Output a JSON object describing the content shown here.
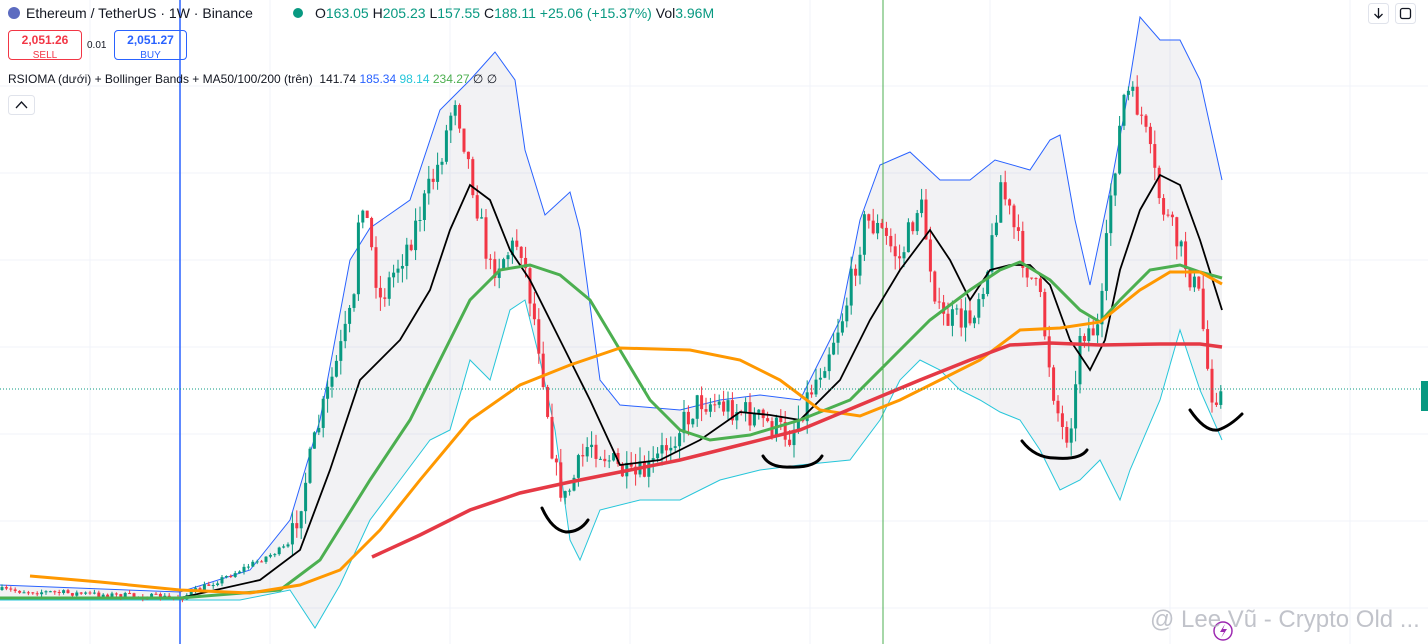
{
  "header": {
    "symbol": "Ethereum / TetherUS · 1W · Binance",
    "open_label": "O",
    "open": "163.05",
    "high_label": "H",
    "high": "205.23",
    "low_label": "L",
    "low": "157.55",
    "close_label": "C",
    "close": "188.11",
    "change": "+25.06 (+15.37%)",
    "volume_label": "Vol",
    "volume": "3.96M"
  },
  "trade": {
    "sell_price": "2,051.26",
    "sell_label": "SELL",
    "spread": "0.01",
    "buy_price": "2,051.27",
    "buy_label": "BUY"
  },
  "indicator": {
    "name": "RSIOMA (dưới) + Bollinger Bands + MA50/100/200 (trên)",
    "values": [
      "141.74",
      "185.34",
      "98.14",
      "234.27",
      "∅",
      "∅"
    ]
  },
  "watermark": "@ Lee Vũ - Crypto Old ..."
}
